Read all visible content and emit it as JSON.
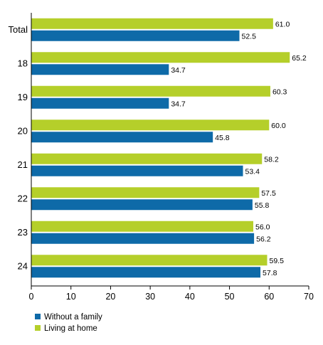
{
  "colors": {
    "without_family": "#0e6aa8",
    "living_at_home": "#b5cf2a",
    "axis": "#000000",
    "grid": "#d9d9d9"
  },
  "legend": {
    "placement": "bottom-left",
    "items": [
      {
        "label": "Without a family",
        "color": "#0e6aa8"
      },
      {
        "label": "Living at home",
        "color": "#b5cf2a"
      }
    ]
  },
  "chart_data": {
    "type": "bar",
    "orientation": "horizontal",
    "categories": [
      "Total",
      "18",
      "19",
      "20",
      "21",
      "22",
      "23",
      "24"
    ],
    "series": [
      {
        "name": "Living at home",
        "values": [
          61.0,
          65.2,
          60.3,
          60.0,
          58.2,
          57.5,
          56.0,
          59.5
        ]
      },
      {
        "name": "Without a family",
        "values": [
          52.5,
          34.7,
          34.7,
          45.8,
          53.4,
          55.8,
          56.2,
          57.8
        ]
      }
    ],
    "value_labels": [
      [
        "61.0",
        "65.2",
        "60.3",
        "60.0",
        "58.2",
        "57.5",
        "56.0",
        "59.5"
      ],
      [
        "52.5",
        "34.7",
        "34.7",
        "45.8",
        "53.4",
        "55.8",
        "56.2",
        "57.8"
      ]
    ],
    "xlim": [
      0,
      70
    ],
    "xticks": [
      0,
      10,
      20,
      30,
      40,
      50,
      60,
      70
    ],
    "xtick_labels": [
      "0",
      "10",
      "20",
      "30",
      "40",
      "50",
      "60",
      "70"
    ],
    "grid": false,
    "title": "",
    "xlabel": "",
    "ylabel": ""
  }
}
